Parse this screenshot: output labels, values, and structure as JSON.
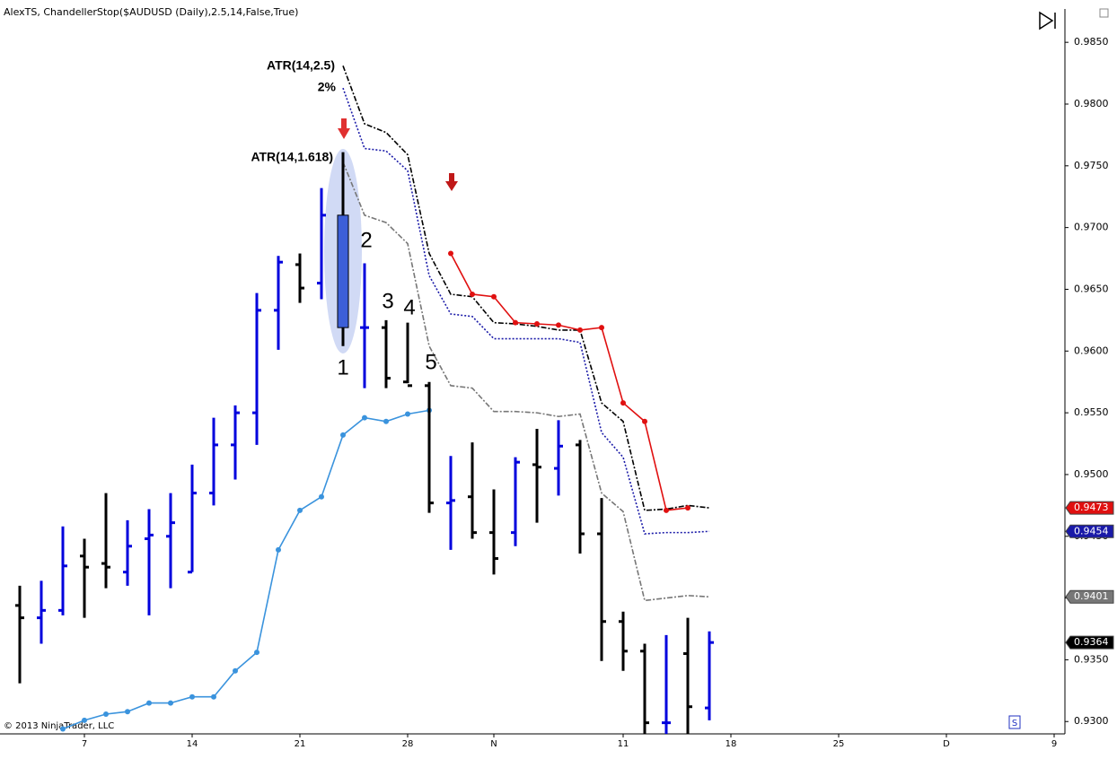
{
  "chart_data": {
    "type": "ohlc",
    "title": "AlexTS, ChandellerStop($AUDUSD (Daily),2.5,14,False,True)",
    "footer": "© 2013 NinjaTrader, LLC",
    "xlim": [
      -0.9167,
      48.458
    ],
    "xticks": [
      {
        "value": 3,
        "label": "7"
      },
      {
        "value": 8,
        "label": "14"
      },
      {
        "value": 13,
        "label": "21"
      },
      {
        "value": 18,
        "label": "28"
      },
      {
        "value": 22,
        "label": "N"
      },
      {
        "value": 28,
        "label": "11"
      },
      {
        "value": 33,
        "label": "18"
      },
      {
        "value": 38,
        "label": "25"
      },
      {
        "value": 43,
        "label": "D"
      },
      {
        "value": 48,
        "label": "9"
      }
    ],
    "ylim": [
      0.929,
      0.9877
    ],
    "yticks": [
      {
        "value": 0.93,
        "label": "0.9300"
      },
      {
        "value": 0.935,
        "label": "0.9350"
      },
      {
        "value": 0.94,
        "label": "0.9400"
      },
      {
        "value": 0.945,
        "label": "0.9450"
      },
      {
        "value": 0.95,
        "label": "0.9500"
      },
      {
        "value": 0.955,
        "label": "0.9550"
      },
      {
        "value": 0.96,
        "label": "0.9600"
      },
      {
        "value": 0.965,
        "label": "0.9650"
      },
      {
        "value": 0.97,
        "label": "0.9700"
      },
      {
        "value": 0.975,
        "label": "0.9750"
      },
      {
        "value": 0.98,
        "label": "0.9800"
      },
      {
        "value": 0.985,
        "label": "0.9850"
      }
    ],
    "up_color": "#0000dd",
    "down_color": "#000000",
    "candle_index": 15,
    "bars": {
      "open": [
        0.9394,
        0.9384,
        0.939,
        0.9434,
        0.9428,
        0.9421,
        0.9448,
        0.945,
        0.9421,
        0.9485,
        0.9524,
        0.955,
        0.9633,
        0.967,
        0.9655,
        0.971,
        0.9619,
        0.9619,
        0.9575,
        0.9572,
        0.9477,
        0.9482,
        0.9453,
        0.9453,
        0.9508,
        0.9505,
        0.9524,
        0.9452,
        0.9381,
        0.9357,
        0.9299,
        0.9355,
        0.9311
      ],
      "high": [
        0.941,
        0.9414,
        0.9458,
        0.9448,
        0.9485,
        0.9463,
        0.9472,
        0.9485,
        0.9508,
        0.9546,
        0.9556,
        0.9647,
        0.9677,
        0.9679,
        0.9732,
        0.9761,
        0.9671,
        0.9625,
        0.9623,
        0.9575,
        0.9515,
        0.9526,
        0.9488,
        0.9514,
        0.9537,
        0.9544,
        0.9528,
        0.9481,
        0.9389,
        0.9363,
        0.937,
        0.9384,
        0.9373
      ],
      "low": [
        0.9331,
        0.9363,
        0.9386,
        0.9384,
        0.9408,
        0.941,
        0.9386,
        0.9408,
        0.9421,
        0.9475,
        0.9496,
        0.9524,
        0.9601,
        0.9639,
        0.9642,
        0.9604,
        0.957,
        0.957,
        0.9574,
        0.9469,
        0.9439,
        0.9448,
        0.9419,
        0.9442,
        0.9461,
        0.9483,
        0.9436,
        0.9349,
        0.9341,
        0.929,
        0.929,
        0.929,
        0.9301
      ],
      "close": [
        0.9384,
        0.939,
        0.9426,
        0.9425,
        0.9425,
        0.9442,
        0.9451,
        0.9461,
        0.9485,
        0.9524,
        0.955,
        0.9633,
        0.9672,
        0.9651,
        0.971,
        0.9619,
        0.9619,
        0.9578,
        0.9572,
        0.9477,
        0.9479,
        0.9453,
        0.9432,
        0.951,
        0.9506,
        0.9523,
        0.9452,
        0.9381,
        0.9357,
        0.9299,
        0.9299,
        0.9312,
        0.9364
      ]
    },
    "close_tag": true,
    "series": [
      {
        "color": "#3a93dd",
        "style": "solid",
        "markers": true,
        "values": [
          null,
          null,
          0.9294,
          0.9301,
          0.9306,
          0.9308,
          0.9315,
          0.9315,
          0.932,
          0.932,
          0.9341,
          0.9356,
          0.9439,
          0.9471,
          0.9482,
          0.9532,
          0.9546,
          0.9543,
          0.9549,
          0.9552,
          null,
          null,
          null,
          null,
          null,
          null,
          null,
          null,
          null,
          null,
          null,
          null,
          null
        ]
      },
      {
        "color": "#000000",
        "style": "dashdot",
        "markers": false,
        "values": [
          null,
          null,
          null,
          null,
          null,
          null,
          null,
          null,
          null,
          null,
          null,
          null,
          null,
          null,
          null,
          0.9831,
          0.9784,
          0.9777,
          0.9759,
          0.9679,
          0.9646,
          0.9644,
          0.9623,
          0.9622,
          0.962,
          0.9617,
          0.9617,
          0.9558,
          0.9543,
          0.9471,
          0.9472,
          0.9475,
          0.9473
        ]
      },
      {
        "color": "#1a1aa8",
        "style": "dotted",
        "markers": false,
        "price_tag": true,
        "values": [
          null,
          null,
          null,
          null,
          null,
          null,
          null,
          null,
          null,
          null,
          null,
          null,
          null,
          null,
          null,
          0.9813,
          0.9764,
          0.9762,
          0.9746,
          0.9661,
          0.963,
          0.9628,
          0.961,
          0.961,
          0.961,
          0.961,
          0.9607,
          0.9534,
          0.9514,
          0.9452,
          0.9453,
          0.9453,
          0.9454
        ]
      },
      {
        "color": "#777777",
        "style": "dashdot",
        "markers": false,
        "price_tag": true,
        "values": [
          null,
          null,
          null,
          null,
          null,
          null,
          null,
          null,
          null,
          null,
          null,
          null,
          null,
          null,
          null,
          0.9753,
          0.971,
          0.9704,
          0.9687,
          0.9604,
          0.9572,
          0.957,
          0.9551,
          0.9551,
          0.955,
          0.9547,
          0.9549,
          0.9485,
          0.947,
          0.9398,
          0.94,
          0.9402,
          0.9401
        ]
      },
      {
        "color": "#e01010",
        "style": "solid",
        "markers": true,
        "price_tag": true,
        "values": [
          null,
          null,
          null,
          null,
          null,
          null,
          null,
          null,
          null,
          null,
          null,
          null,
          null,
          null,
          null,
          null,
          null,
          null,
          null,
          null,
          0.9679,
          0.9646,
          0.9644,
          0.9623,
          0.9622,
          0.9621,
          0.9617,
          0.9619,
          0.9558,
          0.9543,
          0.9471,
          0.9473,
          null
        ]
      }
    ],
    "annotations": [
      "ATR(14,2.5)",
      "2%",
      "ATR(14,1.618)",
      "1",
      "2",
      "3",
      "4",
      "5"
    ]
  }
}
